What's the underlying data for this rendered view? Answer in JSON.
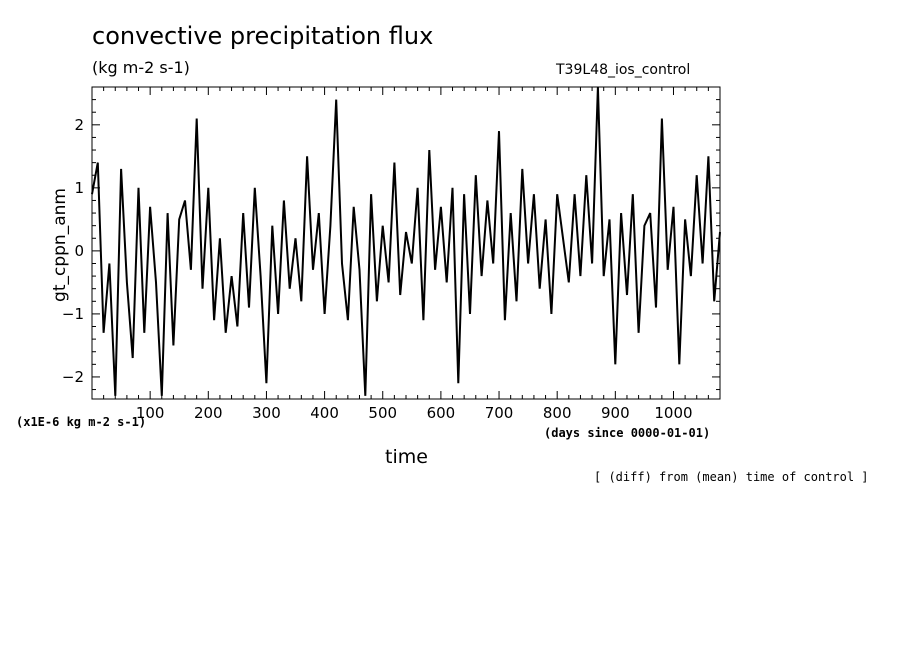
{
  "chart_data": {
    "type": "line",
    "title": "convective precipitation flux",
    "subtitle": "(kg m-2 s-1)",
    "run_label": "T39L48_ios_control",
    "ylabel": "gt_cppn_anm",
    "xlabel": "time",
    "x_units": "(days since 0000-01-01)",
    "y_scale_note": "(x1E-6 kg m-2 s-1)",
    "footnote": "[ (diff) from (mean) time of control ]",
    "xlim": [
      0,
      1080
    ],
    "ylim": [
      -2.35,
      2.6
    ],
    "x_ticks": [
      100,
      200,
      300,
      400,
      500,
      600,
      700,
      800,
      900,
      1000
    ],
    "y_ticks": [
      -2,
      -1,
      0,
      1,
      2
    ],
    "grid": false,
    "series": [
      {
        "x": [
          0,
          10,
          20,
          30,
          40,
          50,
          60,
          70,
          80,
          90,
          100,
          110,
          120,
          130,
          140,
          150,
          160,
          170,
          180,
          190,
          200,
          210,
          220,
          230,
          240,
          250,
          260,
          270,
          280,
          290,
          300,
          310,
          320,
          330,
          340,
          350,
          360,
          370,
          380,
          390,
          400,
          410,
          420,
          430,
          440,
          450,
          460,
          470,
          480,
          490,
          500,
          510,
          520,
          530,
          540,
          550,
          560,
          570,
          580,
          590,
          600,
          610,
          620,
          630,
          640,
          650,
          660,
          670,
          680,
          690,
          700,
          710,
          720,
          730,
          740,
          750,
          760,
          770,
          780,
          790,
          800,
          810,
          820,
          830,
          840,
          850,
          860,
          870,
          880,
          890,
          900,
          910,
          920,
          930,
          940,
          950,
          960,
          970,
          980,
          990,
          1000,
          1010,
          1020,
          1030,
          1040,
          1050,
          1060,
          1070,
          1080
        ],
        "values": [
          0.9,
          1.4,
          -1.3,
          -0.2,
          -2.3,
          1.3,
          -0.5,
          -1.7,
          1.0,
          -1.3,
          0.7,
          -0.5,
          -2.3,
          0.6,
          -1.5,
          0.5,
          0.8,
          -0.3,
          2.1,
          -0.6,
          1.0,
          -1.1,
          0.2,
          -1.3,
          -0.4,
          -1.2,
          0.6,
          -0.9,
          1.0,
          -0.4,
          -2.1,
          0.4,
          -1.0,
          0.8,
          -0.6,
          0.2,
          -0.8,
          1.5,
          -0.3,
          0.6,
          -1.0,
          0.4,
          2.4,
          -0.2,
          -1.1,
          0.7,
          -0.3,
          -2.3,
          0.9,
          -0.8,
          0.4,
          -0.5,
          1.4,
          -0.7,
          0.3,
          -0.2,
          1.0,
          -1.1,
          1.6,
          -0.3,
          0.7,
          -0.5,
          1.0,
          -2.1,
          0.9,
          -1.0,
          1.2,
          -0.4,
          0.8,
          -0.2,
          1.9,
          -1.1,
          0.6,
          -0.8,
          1.3,
          -0.2,
          0.9,
          -0.6,
          0.5,
          -1.0,
          0.9,
          0.2,
          -0.5,
          0.9,
          -0.4,
          1.2,
          -0.2,
          2.6,
          -0.4,
          0.5,
          -1.8,
          0.6,
          -0.7,
          0.9,
          -1.3,
          0.4,
          0.6,
          -0.9,
          2.1,
          -0.3,
          0.7,
          -1.8,
          0.5,
          -0.4,
          1.2,
          -0.2,
          1.5,
          -0.8,
          0.3
        ]
      }
    ]
  }
}
